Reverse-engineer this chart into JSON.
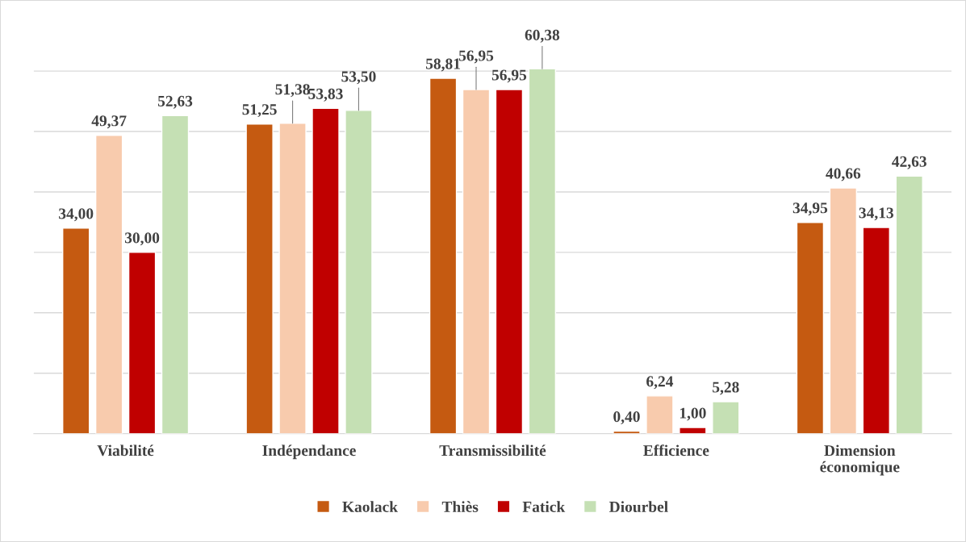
{
  "chart_data": {
    "type": "bar",
    "categories": [
      "Viabilité",
      "Indépendance",
      "Transmissibilité",
      "Efficience",
      "Dimension\néconomique"
    ],
    "series": [
      {
        "name": "Kaolack",
        "color": "#c55a11",
        "values": [
          34.0,
          51.25,
          58.81,
          0.4,
          34.95
        ],
        "value_labels": [
          "34,00",
          "51,25",
          "58,81",
          "0,40",
          "34,95"
        ]
      },
      {
        "name": "Thiès",
        "color": "#f8cbad",
        "values": [
          49.37,
          51.38,
          56.95,
          6.24,
          40.66
        ],
        "value_labels": [
          "49,37",
          "51,38",
          "56,95",
          "6,24",
          "40,66"
        ]
      },
      {
        "name": "Fatick",
        "color": "#c00000",
        "values": [
          30.0,
          53.83,
          56.95,
          1.0,
          34.13
        ],
        "value_labels": [
          "30,00",
          "53,83",
          "56,95",
          "1,00",
          "34,13"
        ]
      },
      {
        "name": "Diourbel",
        "color": "#c5e0b4",
        "values": [
          52.63,
          53.5,
          60.38,
          5.28,
          42.63
        ],
        "value_labels": [
          "52,63",
          "53,50",
          "60,38",
          "5,28",
          "42,63"
        ]
      }
    ],
    "tick_labels": "x",
    "grid": "y",
    "legend": "bottom"
  }
}
